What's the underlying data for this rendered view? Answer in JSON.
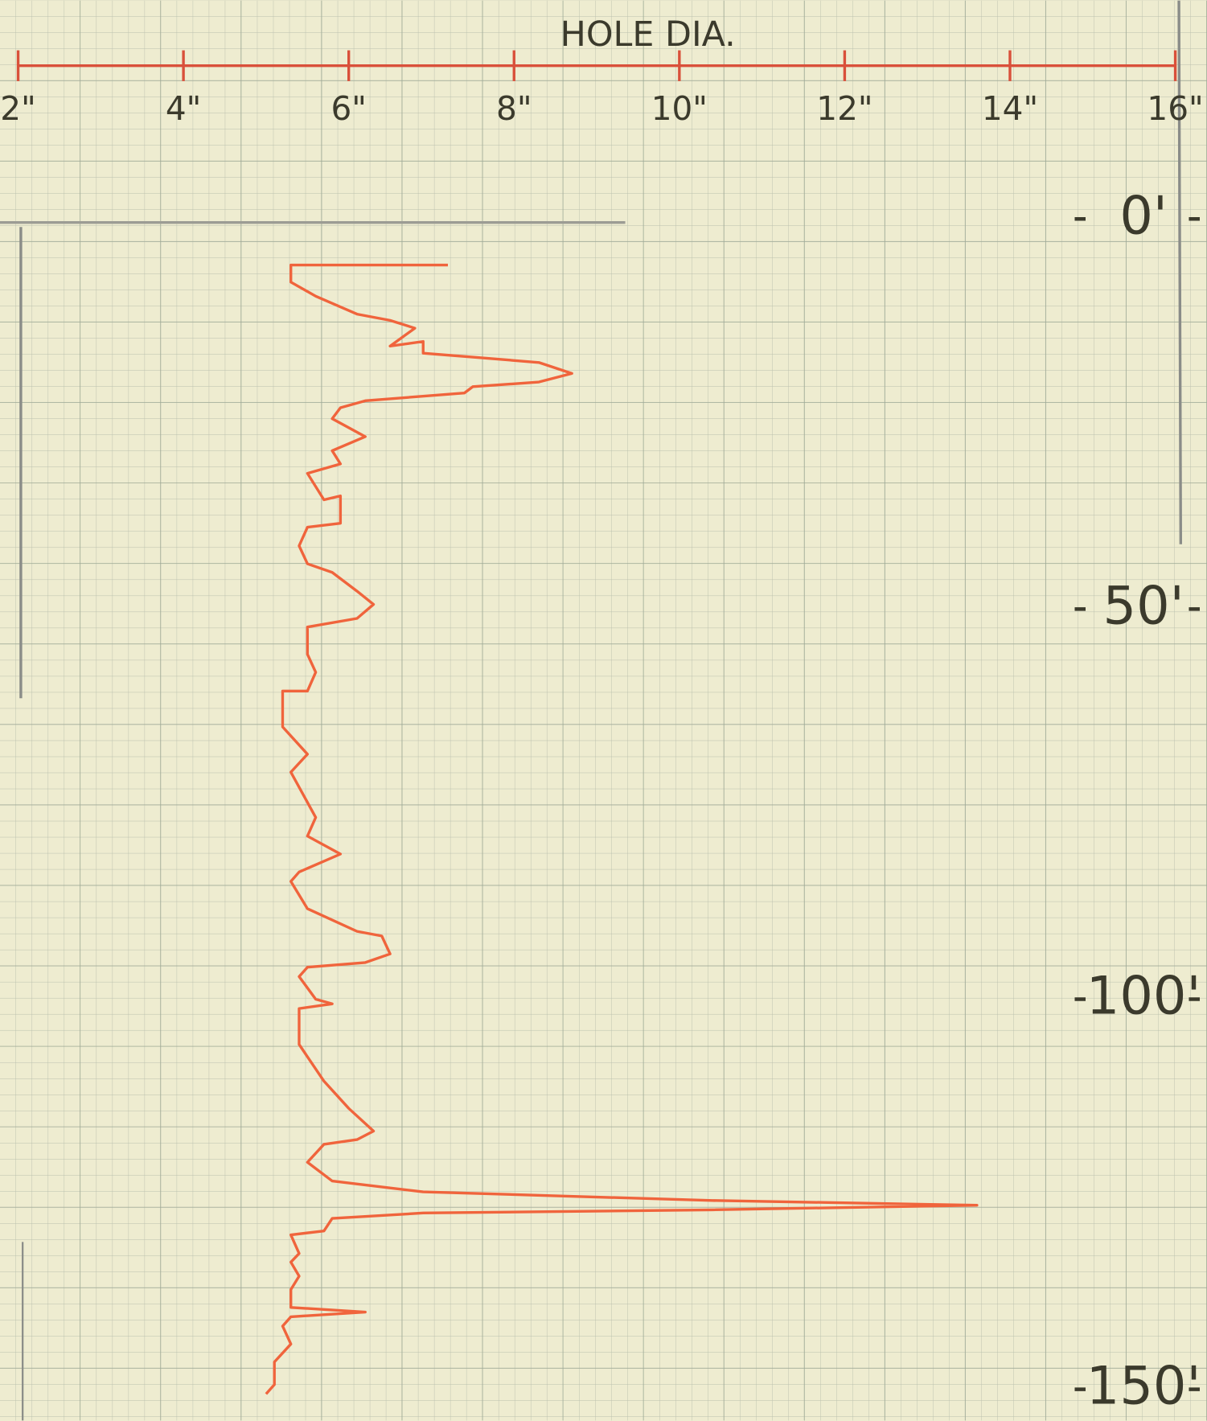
{
  "chart_data": {
    "type": "line",
    "title": "HOLE DIA.",
    "xlim": [
      2,
      16
    ],
    "xticks": [
      {
        "value": 2,
        "label": "2\""
      },
      {
        "value": 4,
        "label": "4\""
      },
      {
        "value": 6,
        "label": "6\""
      },
      {
        "value": 8,
        "label": "8\""
      },
      {
        "value": 10,
        "label": "10\""
      },
      {
        "value": 12,
        "label": "12\""
      },
      {
        "value": 14,
        "label": "14\""
      },
      {
        "value": 16,
        "label": "16\""
      }
    ],
    "ylim": [
      -28,
      154
    ],
    "yticks": [
      {
        "value": 0,
        "label": "0'"
      },
      {
        "value": 50,
        "label": "50'"
      },
      {
        "value": 100,
        "label": "100'"
      },
      {
        "value": 150,
        "label": "150'"
      }
    ],
    "color": "#f0643c",
    "axis_color": "#d9503a",
    "depth": [
      5.9,
      5.9,
      8.1,
      9.9,
      12.2,
      13.0,
      14.0,
      16.3,
      15.7,
      17.2,
      17.7,
      18.4,
      19.8,
      20.9,
      21.5,
      22.3,
      23.3,
      24.2,
      25.6,
      27.9,
      29.7,
      31.4,
      32.6,
      36.0,
      35.5,
      39.0,
      39.5,
      41.9,
      44.2,
      45.3,
      47.7,
      49.4,
      51.2,
      52.3,
      55.8,
      58.1,
      60.5,
      60.5,
      65.1,
      68.6,
      70.9,
      76.7,
      79.1,
      81.4,
      83.7,
      84.9,
      88.4,
      91.3,
      91.9,
      94.2,
      95.3,
      95.9,
      97.1,
      100.0,
      100.6,
      101.2,
      105.8,
      110.5,
      114.0,
      116.9,
      118.0,
      118.6,
      120.9,
      123.3,
      124.7,
      125.8,
      126.4,
      127.0,
      127.4,
      128.1,
      129.7,
      130.2,
      132.6,
      133.7,
      135.5,
      137.2,
      139.5,
      140.1,
      140.7,
      141.9,
      144.2,
      146.5,
      149.4,
      150.6
    ],
    "diameter": [
      7.2,
      5.3,
      5.3,
      5.6,
      6.1,
      6.5,
      6.8,
      6.5,
      6.9,
      6.9,
      7.5,
      8.3,
      8.7,
      8.3,
      7.5,
      7.4,
      6.2,
      5.9,
      5.8,
      6.2,
      5.8,
      5.9,
      5.5,
      5.7,
      5.9,
      5.9,
      5.5,
      5.4,
      5.5,
      5.8,
      6.1,
      6.3,
      6.1,
      5.5,
      5.5,
      5.6,
      5.5,
      5.2,
      5.2,
      5.5,
      5.3,
      5.6,
      5.5,
      5.9,
      5.4,
      5.3,
      5.5,
      6.1,
      6.4,
      6.5,
      6.2,
      5.5,
      5.4,
      5.6,
      5.8,
      5.4,
      5.4,
      5.7,
      6.0,
      6.3,
      6.1,
      5.7,
      5.5,
      5.8,
      6.9,
      10.4,
      13.6,
      10.4,
      6.9,
      5.8,
      5.7,
      5.3,
      5.4,
      5.3,
      5.4,
      5.3,
      5.3,
      6.2,
      5.3,
      5.2,
      5.3,
      5.1,
      5.1,
      5.0
    ]
  }
}
